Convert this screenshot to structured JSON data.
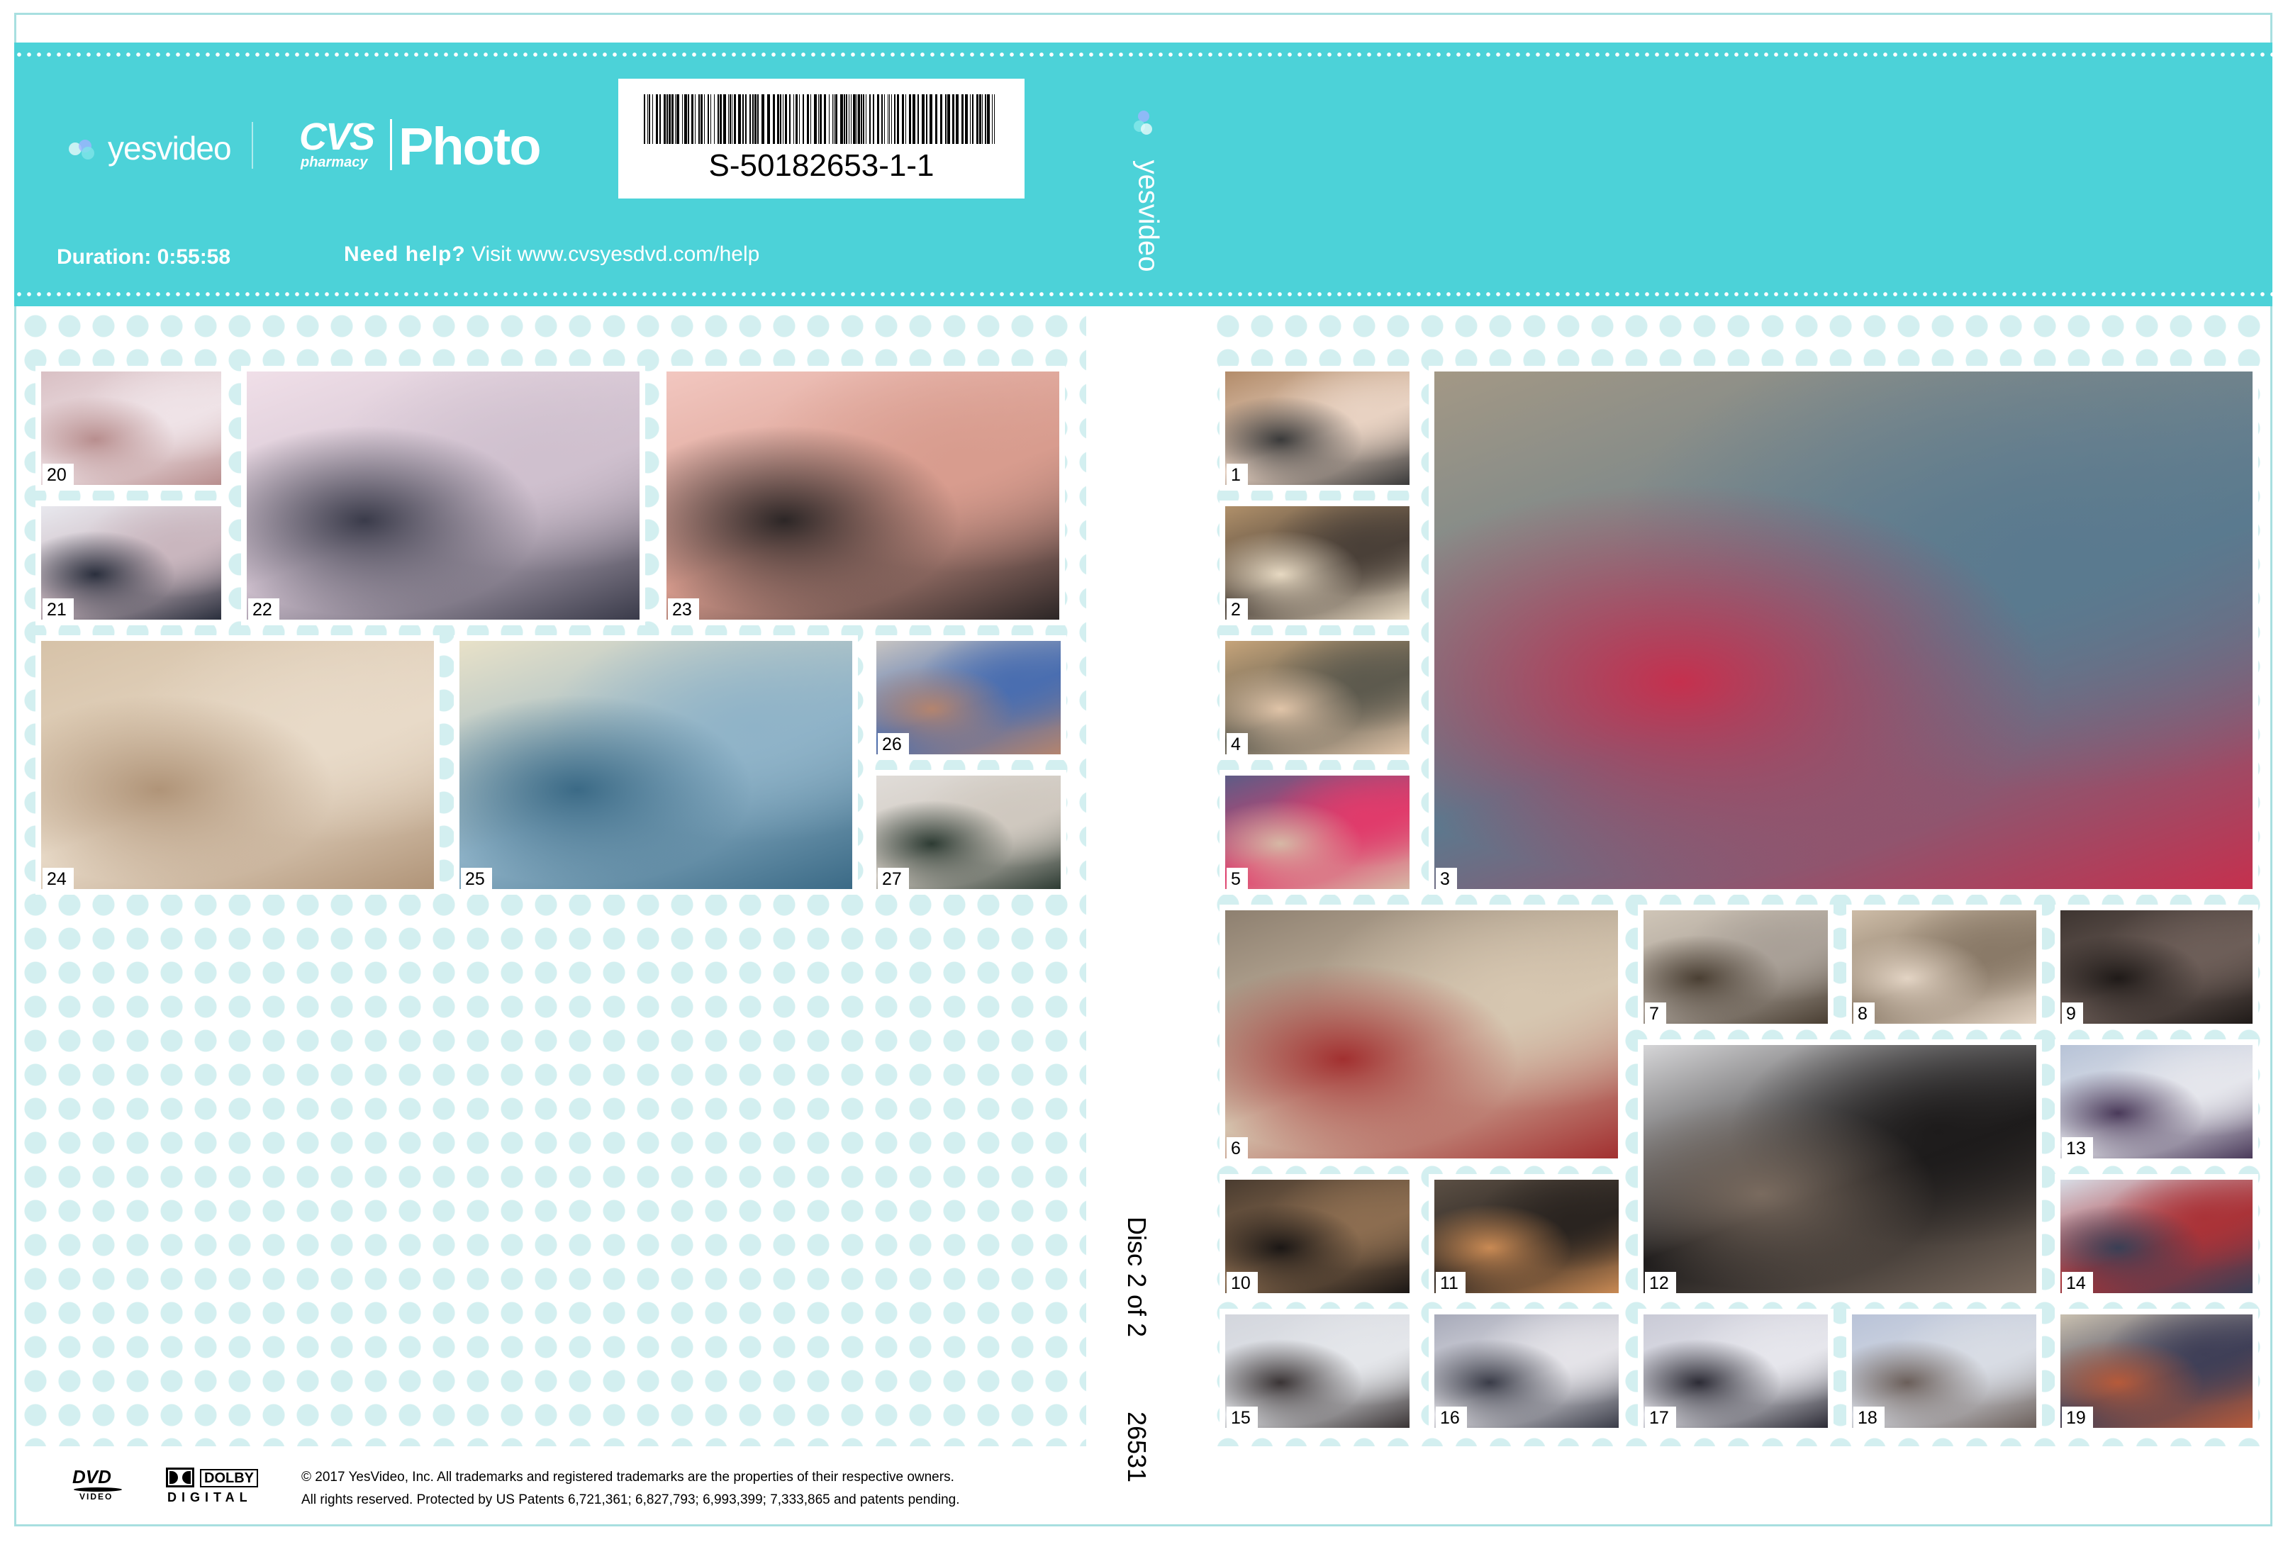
{
  "header": {
    "yesvideo_logo": "yesvideo",
    "cvs_logo": "CVS",
    "cvs_pharmacy": "pharmacy",
    "photo_label": "Photo",
    "barcode_text": "S-50182653-1-1",
    "duration": "Duration: 0:55:58",
    "help_bold": "Need help?",
    "help_text": "Visit www.cvsyesdvd.com/help",
    "spine_logo": "yesvideo"
  },
  "spine": {
    "disc_label": "Disc 2 of 2",
    "code": "26531"
  },
  "footer": {
    "dvd_logo": "DVD",
    "dvd_sub": "VIDEO",
    "dolby_logo": "DOLBY",
    "dolby_sub": "DIGITAL",
    "copyright_line1": "© 2017 YesVideo, Inc. All trademarks and registered trademarks are the properties of their respective owners.",
    "copyright_line2": "All rights reserved. Protected by US Patents 6,721,361; 6,827,793; 6,993,399; 7,333,865 and patents pending."
  },
  "colors": {
    "brand_teal": "#4cd2d8",
    "dot_tint": "#d3eff0"
  },
  "back_thumbs": [
    {
      "n": "20"
    },
    {
      "n": "21"
    },
    {
      "n": "22"
    },
    {
      "n": "23"
    },
    {
      "n": "24"
    },
    {
      "n": "25"
    },
    {
      "n": "26"
    },
    {
      "n": "27"
    }
  ],
  "front_thumbs": [
    {
      "n": "1"
    },
    {
      "n": "2"
    },
    {
      "n": "3"
    },
    {
      "n": "4"
    },
    {
      "n": "5"
    },
    {
      "n": "6"
    },
    {
      "n": "7"
    },
    {
      "n": "8"
    },
    {
      "n": "9"
    },
    {
      "n": "10"
    },
    {
      "n": "11"
    },
    {
      "n": "12"
    },
    {
      "n": "13"
    },
    {
      "n": "14"
    },
    {
      "n": "15"
    },
    {
      "n": "16"
    },
    {
      "n": "17"
    },
    {
      "n": "18"
    },
    {
      "n": "19"
    }
  ]
}
